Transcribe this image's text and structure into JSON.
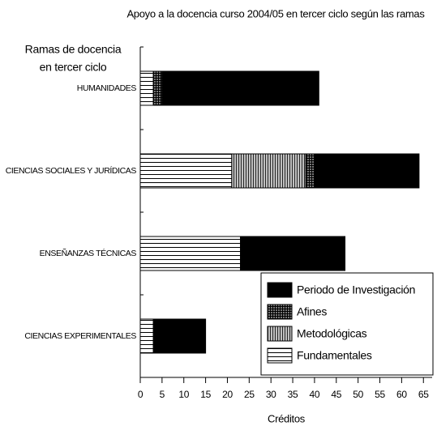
{
  "chart_data": {
    "type": "stacked-barh",
    "title": "Apoyo a la docencia curso 2004/05 en tercer ciclo según las ramas",
    "y_label": [
      "Ramas de docencia",
      "en tercer ciclo"
    ],
    "x_label": "Créditos",
    "categories": [
      "HUMANIDADES",
      "CIENCIAS SOCIALES Y JURÍDICAS",
      "ENSEÑANZAS TÉCNICAS",
      "CIENCIAS EXPERIMENTALES"
    ],
    "series": [
      {
        "name": "Fundamentales",
        "color": "#ffffff",
        "pattern": "horizontal",
        "values": [
          3,
          21,
          23,
          3
        ]
      },
      {
        "name": "Metodológicas",
        "color": "#c0c0c0",
        "pattern": "vertical",
        "values": [
          0,
          17,
          0,
          0
        ]
      },
      {
        "name": "Afines",
        "color": "#606060",
        "pattern": "grid",
        "values": [
          2,
          2,
          0,
          0
        ]
      },
      {
        "name": "Periodo de Investigación",
        "color": "#000000",
        "pattern": "solid",
        "values": [
          36,
          24,
          24,
          12
        ]
      }
    ],
    "xlim": [
      0,
      67
    ],
    "xticks": [
      0,
      5,
      10,
      15,
      20,
      25,
      30,
      35,
      40,
      45,
      50,
      55,
      60,
      65
    ],
    "legend": "lower right"
  }
}
